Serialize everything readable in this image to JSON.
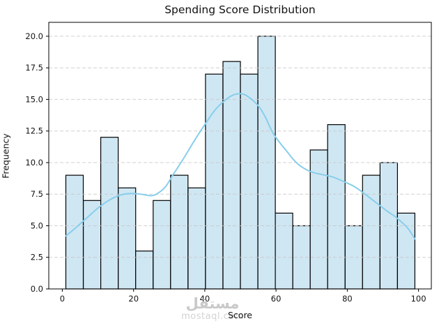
{
  "chart_data": {
    "type": "bar",
    "subtype": "histogram_with_kde",
    "title": "Spending Score Distribution",
    "xlabel": "Score",
    "ylabel": "Frequency",
    "bins": {
      "start": 1,
      "end": 99,
      "count": 20,
      "width": 4.9
    },
    "frequencies": [
      9,
      7,
      12,
      8,
      3,
      7,
      9,
      8,
      17,
      18,
      17,
      20,
      6,
      5,
      11,
      13,
      5,
      9,
      10,
      6
    ],
    "kde_curve": [
      [
        1,
        4.2
      ],
      [
        3,
        4.65
      ],
      [
        5,
        5.15
      ],
      [
        7,
        5.65
      ],
      [
        10,
        6.4
      ],
      [
        13,
        7.0
      ],
      [
        16,
        7.4
      ],
      [
        19,
        7.55
      ],
      [
        22,
        7.5
      ],
      [
        25,
        7.38
      ],
      [
        27,
        7.6
      ],
      [
        29,
        8.1
      ],
      [
        31,
        9.0
      ],
      [
        34,
        10.3
      ],
      [
        37,
        11.7
      ],
      [
        40,
        13.0
      ],
      [
        43,
        14.2
      ],
      [
        46,
        15.0
      ],
      [
        48,
        15.35
      ],
      [
        50,
        15.45
      ],
      [
        52,
        15.25
      ],
      [
        55,
        14.5
      ],
      [
        57,
        13.6
      ],
      [
        59,
        12.4
      ],
      [
        61,
        11.6
      ],
      [
        63,
        10.9
      ],
      [
        65,
        10.2
      ],
      [
        67,
        9.7
      ],
      [
        70,
        9.25
      ],
      [
        73,
        9.05
      ],
      [
        76,
        8.85
      ],
      [
        79,
        8.5
      ],
      [
        82,
        8.1
      ],
      [
        85,
        7.5
      ],
      [
        88,
        6.85
      ],
      [
        91,
        6.2
      ],
      [
        94,
        5.6
      ],
      [
        97,
        4.8
      ],
      [
        99,
        3.95
      ]
    ],
    "x_ticks": [
      0,
      20,
      40,
      60,
      80,
      100
    ],
    "y_tick_labels": [
      "0.0",
      "2.5",
      "5.0",
      "7.5",
      "10.0",
      "12.5",
      "15.0",
      "17.5",
      "20.0"
    ],
    "xlim": [
      -3.8,
      103.6
    ],
    "ylim": [
      0,
      21.1
    ],
    "grid": {
      "axis": "y",
      "style": "dashed",
      "color": "#c8c8c8"
    },
    "legend": "none",
    "colors": {
      "bar_fill": "#cfe7f3",
      "bar_edge": "#000000",
      "kde_line": "#87ceeb",
      "spine": "#000000",
      "text": "#111111",
      "watermark": "#cccccc"
    }
  },
  "watermark": {
    "arabic": "مستقل",
    "latin": "mostaql.com"
  }
}
